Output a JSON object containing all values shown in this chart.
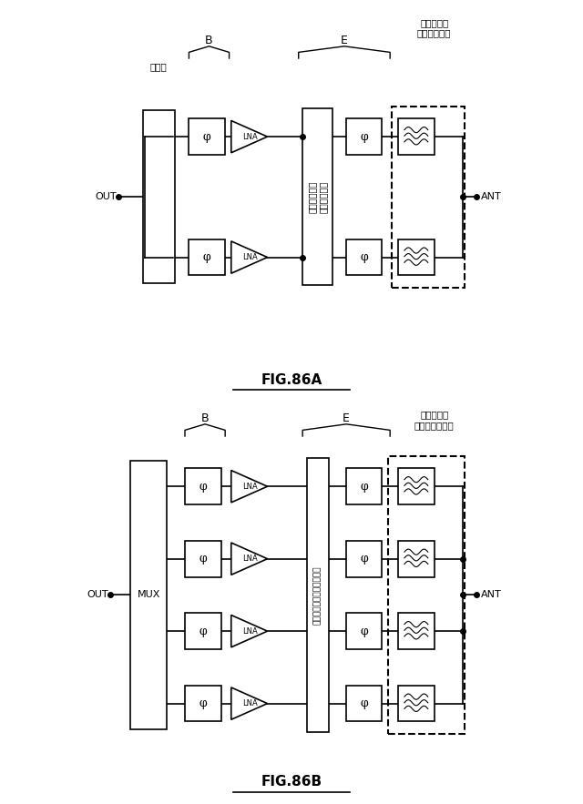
{
  "fig_width": 6.4,
  "fig_height": 8.83,
  "bg_color": "#ffffff",
  "line_color": "#000000",
  "figA": {
    "title": "FIG.86A",
    "out_label": "OUT",
    "ant_label": "ANT",
    "combiner_label": "結合器",
    "B_label": "B",
    "E_label": "E",
    "filter_label": "フィルタ／\nダイプレクサ",
    "switch_label": "スイッチング\nネットワーク",
    "rows": 2
  },
  "figB": {
    "title": "FIG.86B",
    "out_label": "OUT",
    "ant_label": "ANT",
    "mux_label": "MUX",
    "B_label": "B",
    "E_label": "E",
    "filter_label": "フィルタ／\nマルチプレクサ",
    "switch_label": "スイッチングネットワーク",
    "rows": 4
  }
}
